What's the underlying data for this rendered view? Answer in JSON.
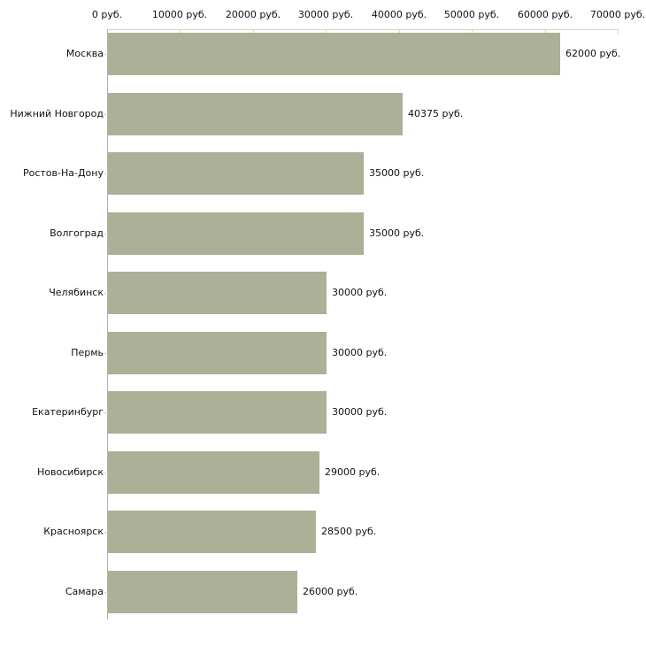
{
  "chart_data": {
    "type": "bar",
    "orientation": "horizontal",
    "title": "",
    "xlabel": "",
    "ylabel": "",
    "categories": [
      "Москва",
      "Нижний Новгород",
      "Ростов-На-Дону",
      "Волгоград",
      "Челябинск",
      "Пермь",
      "Екатеринбург",
      "Новосибирск",
      "Красноярск",
      "Самара"
    ],
    "values": [
      62000,
      40375,
      35000,
      35000,
      30000,
      30000,
      30000,
      29000,
      28500,
      26000
    ],
    "value_labels": [
      "62000 руб.",
      "40375 руб.",
      "35000 руб.",
      "35000 руб.",
      "30000 руб.",
      "30000 руб.",
      "30000 руб.",
      "29000 руб.",
      "28500 руб.",
      "26000 руб."
    ],
    "x_ticks": [
      0,
      10000,
      20000,
      30000,
      40000,
      50000,
      60000,
      70000
    ],
    "x_tick_labels": [
      "0 руб.",
      "10000 руб.",
      "20000 руб.",
      "30000 руб.",
      "40000 руб.",
      "50000 руб.",
      "60000 руб.",
      "70000 руб."
    ],
    "xlim": [
      0,
      70000
    ],
    "grid": false,
    "legend": false,
    "colors": {
      "bar_fill": "#abb097",
      "axis_line": "#d6d8be",
      "category_axis_line": "#b2b2b0",
      "text": "#111111",
      "background": "#ffffff"
    }
  }
}
